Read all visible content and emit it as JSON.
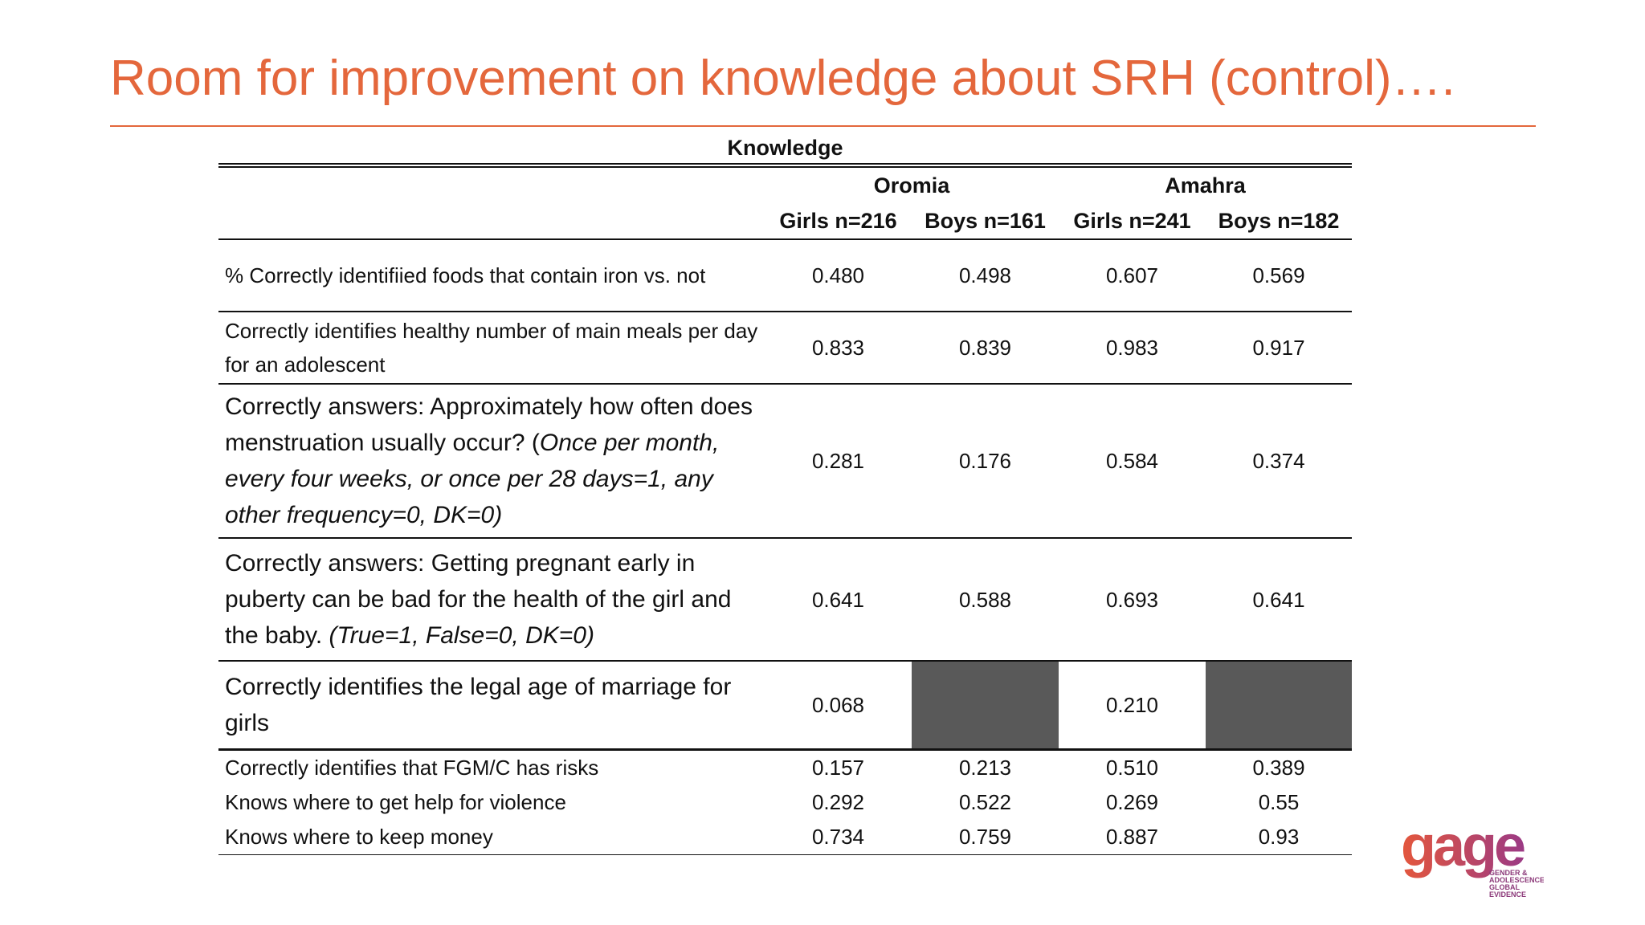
{
  "header": {
    "title": "Room for improvement on knowledge about SRH (control)…."
  },
  "table": {
    "caption": "Knowledge",
    "groups": [
      "Oromia",
      "Amahra"
    ],
    "columns": [
      "Girls n=216",
      "Boys n=161",
      "Girls n=241",
      "Boys n=182"
    ],
    "rows": [
      {
        "label": "% Correctly identifiied foods that contain iron vs. not",
        "values": [
          "0.480",
          "0.498",
          "0.607",
          "0.569"
        ]
      },
      {
        "label": "Correctly identifies healthy number of main meals per day for an adolescent",
        "values": [
          "0.833",
          "0.839",
          "0.983",
          "0.917"
        ]
      },
      {
        "label": "Correctly answers: Approximately how often does menstruation usually occur? (",
        "note": "Once per month, every four weeks, or once per 28 days=1, any other frequency=0, DK=0)",
        "values": [
          "0.281",
          "0.176",
          "0.584",
          "0.374"
        ]
      },
      {
        "label": "Correctly answers: Getting pregnant early in puberty can be bad for the health of the girl and the baby.",
        "note": "(True=1, False=0, DK=0)",
        "values": [
          "0.641",
          "0.588",
          "0.693",
          "0.641"
        ]
      },
      {
        "label": "Correctly identifies the legal age of marriage for girls",
        "values": [
          "0.068",
          null,
          "0.210",
          null
        ]
      },
      {
        "label": "Correctly identifies that FGM/C has risks",
        "values": [
          "0.157",
          "0.213",
          "0.510",
          "0.389"
        ]
      },
      {
        "label": "Knows where to get help for violence",
        "values": [
          "0.292",
          "0.522",
          "0.269",
          "0.55"
        ]
      },
      {
        "label": "Knows where to keep money",
        "values": [
          "0.734",
          "0.759",
          "0.887",
          "0.93"
        ]
      }
    ]
  },
  "logo": {
    "name": "gage",
    "tagline": [
      "GENDER &",
      "ADOLESCENCE:",
      "GLOBAL",
      "EVIDENCE"
    ]
  }
}
